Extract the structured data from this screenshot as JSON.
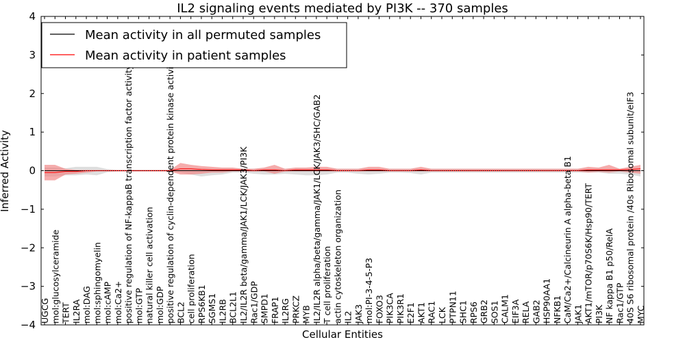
{
  "chart_data": {
    "type": "line",
    "title": "IL2 signaling events mediated by PI3K -- 370 samples",
    "xlabel": "Cellular Entities",
    "ylabel": "Inferred Activity",
    "ylim": [
      -4,
      4
    ],
    "yticks": [
      -4,
      -3,
      -2,
      -1,
      0,
      1,
      2,
      3,
      4
    ],
    "legend_position": "top-left",
    "colors": {
      "permuted": "#000000",
      "patient": "#ff0000",
      "permuted_band": "#c8c8c8",
      "patient_band": "#f08080"
    },
    "categories": [
      "UGCG",
      "mol:glucosylceramide",
      "TERT",
      "IL2RA",
      "mol:DAG",
      "mol:sphingomyelin",
      "mol:cAMP",
      "mol:Ca2+",
      "positive regulation of NF-kappaB transcription factor activity",
      "mol:GTP",
      "natural killer cell activation",
      "mol:GDP",
      "positive regulation of cyclin-dependent protein kinase activity",
      "BCL2",
      "cell proliferation",
      "RPS6KB1",
      "SGMS1",
      "IL2RB",
      "BCL2L1",
      "IL2/IL2R beta/gamma/JAK1/LCK/JAK3/PI3K",
      "Rac1/GDP",
      "SMPD1",
      "FRAP1",
      "IL2RG",
      "PRKCZ",
      "MYB",
      "IL2/IL2R alpha/beta/gamma/JAK1/LCK/JAK3/SHC/GAB2",
      "T cell proliferation",
      "actin cytoskeleton organization",
      "IL2",
      "JAK3",
      "mol:PI-3-4-5-P3",
      "FOXO3",
      "PIK3CA",
      "PIK3R1",
      "E2F1",
      "AKT1",
      "RAC1",
      "LCK",
      "PTPN11",
      "SHC1",
      "RPS6",
      "GRB2",
      "SOS1",
      "CALM1",
      "EIF3A",
      "RELA",
      "GAB2",
      "HSP90AA1",
      "NFKB1",
      "CaM/Ca2+/Calcineurin A alpha-beta B1",
      "JAK1",
      "AKT1/mTOR/p70S6K/Hsp90/TERT",
      "PI3K",
      "NF kappa B1 p50/RelA",
      "Rac1/GTP",
      "40S S6 ribosomal protein /40s Ribosomal subunit/eIF3",
      "MYC"
    ],
    "series": [
      {
        "name": "Mean activity in all permuted samples",
        "values": [
          0,
          0,
          0,
          0,
          0,
          0,
          0,
          0,
          0,
          0,
          0,
          0,
          0,
          0,
          0,
          0,
          0,
          0,
          0,
          0,
          0,
          0,
          0,
          0,
          0,
          0,
          0,
          0,
          0,
          0,
          0,
          0,
          0,
          0,
          0,
          0,
          0,
          0,
          0,
          0,
          0,
          0,
          0,
          0,
          0,
          0,
          0,
          0,
          0,
          0,
          0,
          0,
          0,
          0,
          0,
          0,
          0,
          0
        ],
        "upper": [
          0.08,
          0.08,
          0.06,
          0.1,
          0.1,
          0.1,
          0.04,
          0.02,
          0.02,
          0.02,
          0.02,
          0.02,
          0.02,
          0.05,
          0.05,
          0.05,
          0.05,
          0.05,
          0.05,
          0.05,
          0.05,
          0.05,
          0.05,
          0.05,
          0.05,
          0.05,
          0.05,
          0.05,
          0.05,
          0.05,
          0.05,
          0.05,
          0.05,
          0.05,
          0.05,
          0.05,
          0.05,
          0.05,
          0.05,
          0.05,
          0.05,
          0.05,
          0.05,
          0.05,
          0.05,
          0.05,
          0.05,
          0.05,
          0.05,
          0.05,
          0.05,
          0.05,
          0.05,
          0.05,
          0.05,
          0.05,
          0.05,
          0.05
        ],
        "lower": [
          -0.15,
          -0.15,
          -0.12,
          -0.12,
          -0.1,
          -0.12,
          -0.04,
          -0.02,
          -0.02,
          -0.02,
          -0.02,
          -0.02,
          -0.02,
          -0.05,
          -0.1,
          -0.15,
          -0.12,
          -0.1,
          -0.05,
          -0.05,
          -0.08,
          -0.1,
          -0.1,
          -0.08,
          -0.1,
          -0.12,
          -0.12,
          -0.1,
          -0.05,
          -0.05,
          -0.08,
          -0.1,
          -0.08,
          -0.05,
          -0.05,
          -0.06,
          -0.1,
          -0.05,
          -0.05,
          -0.05,
          -0.05,
          -0.05,
          -0.05,
          -0.05,
          -0.05,
          -0.05,
          -0.05,
          -0.05,
          -0.05,
          -0.05,
          -0.05,
          -0.05,
          -0.05,
          -0.05,
          -0.08,
          -0.08,
          -0.1,
          -0.15
        ]
      },
      {
        "name": "Mean activity in patient samples",
        "values": [
          -0.05,
          -0.05,
          -0.02,
          -0.02,
          0,
          0,
          0,
          0,
          0,
          0,
          0,
          0,
          0,
          0.05,
          0.05,
          0.03,
          0.02,
          0.02,
          0.02,
          0.02,
          0,
          0.02,
          0.02,
          0,
          0.02,
          0.02,
          0.02,
          0.02,
          0,
          0,
          0,
          0.02,
          0.02,
          0,
          0,
          0,
          0.02,
          0,
          0,
          0,
          0,
          0,
          0,
          0,
          0,
          0,
          0,
          0,
          0,
          0,
          0,
          0,
          0.02,
          0.02,
          0.02,
          0.02,
          0.03,
          0.05
        ],
        "upper": [
          0.15,
          0.15,
          0.05,
          0.02,
          0.02,
          0.02,
          0.02,
          0.02,
          0.02,
          0.02,
          0.02,
          0.02,
          0.02,
          0.2,
          0.15,
          0.12,
          0.1,
          0.08,
          0.08,
          0.05,
          0.05,
          0.08,
          0.15,
          0.05,
          0.08,
          0.08,
          0.1,
          0.1,
          0.05,
          0.05,
          0.05,
          0.1,
          0.1,
          0.05,
          0.05,
          0.05,
          0.1,
          0.05,
          0.05,
          0.05,
          0.05,
          0.05,
          0.05,
          0.05,
          0.05,
          0.05,
          0.05,
          0.05,
          0.05,
          0.05,
          0.05,
          0.05,
          0.1,
          0.08,
          0.15,
          0.05,
          0.1,
          0.15
        ],
        "lower": [
          -0.25,
          -0.25,
          -0.1,
          -0.08,
          -0.05,
          -0.02,
          -0.02,
          -0.02,
          -0.02,
          -0.02,
          -0.02,
          -0.02,
          -0.02,
          -0.1,
          -0.1,
          -0.08,
          -0.05,
          -0.05,
          -0.02,
          -0.02,
          -0.02,
          -0.02,
          -0.08,
          -0.02,
          -0.02,
          -0.02,
          -0.02,
          -0.02,
          -0.02,
          -0.02,
          -0.02,
          -0.02,
          -0.02,
          -0.02,
          -0.02,
          -0.02,
          -0.02,
          -0.02,
          -0.02,
          -0.02,
          -0.02,
          -0.02,
          -0.02,
          -0.02,
          -0.02,
          -0.02,
          -0.02,
          -0.02,
          -0.02,
          -0.02,
          -0.02,
          -0.02,
          -0.05,
          -0.03,
          -0.05,
          -0.02,
          -0.05,
          -0.08
        ]
      }
    ]
  }
}
